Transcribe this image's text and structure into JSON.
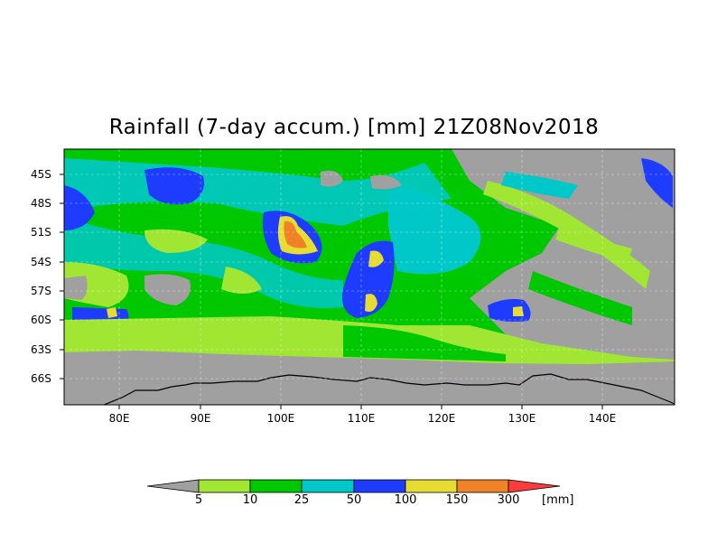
{
  "title": "Rainfall (7-day accum.) [mm] 21Z08Nov2018",
  "lat_labels": [
    "45S",
    "48S",
    "51S",
    "54S",
    "57S",
    "60S",
    "63S",
    "66S"
  ],
  "lon_labels": [
    "80E",
    "90E",
    "100E",
    "110E",
    "120E",
    "130E",
    "140E"
  ],
  "colorbar": {
    "levels": [
      "5",
      "10",
      "25",
      "50",
      "100",
      "150",
      "300"
    ],
    "unit": "[mm]",
    "colors": {
      "below": "#a0a0a0",
      "c5_10": "#a0e632",
      "c10_25": "#00c800",
      "c25_50": "#00c8c8",
      "c50_100": "#1e3cff",
      "c100_150": "#e6dc32",
      "c150_300": "#f08228",
      "above": "#fa3c3c"
    }
  }
}
